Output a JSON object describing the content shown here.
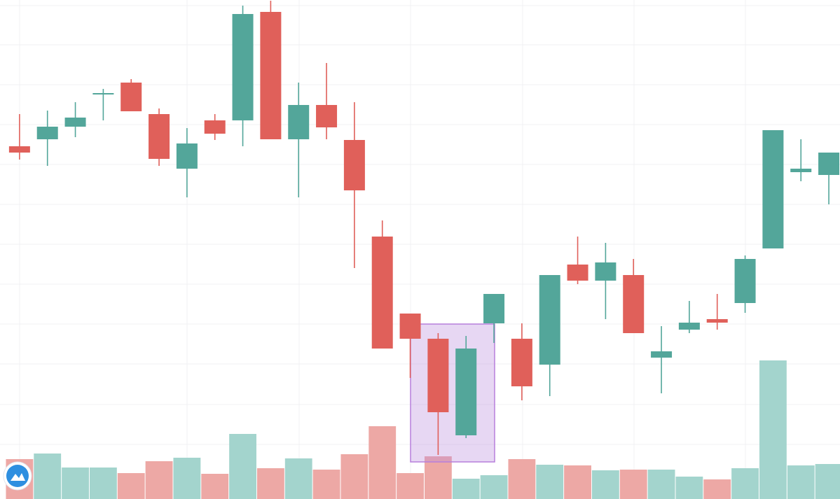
{
  "chart_data": {
    "type": "candlestick",
    "x": [
      1,
      2,
      3,
      4,
      5,
      6,
      7,
      8,
      9,
      10,
      11,
      12,
      13,
      14,
      15,
      16,
      17,
      18,
      19,
      20,
      21,
      22,
      23,
      24,
      25,
      26,
      27,
      28,
      29,
      30
    ],
    "open": [
      504,
      514,
      532,
      578,
      595,
      550,
      472,
      541,
      541,
      696,
      514,
      563,
      513,
      375,
      265,
      229,
      91,
      251,
      229,
      192,
      335,
      312,
      320,
      202,
      242,
      257,
      280,
      358,
      467,
      463
    ],
    "high": [
      550,
      555,
      567,
      586,
      600,
      558,
      530,
      550,
      705,
      712,
      595,
      623,
      567,
      398,
      265,
      237,
      233,
      293,
      251,
      320,
      375,
      366,
      343,
      247,
      283,
      293,
      348,
      527,
      514,
      495
    ],
    "low": [
      485,
      476,
      517,
      541,
      554,
      476,
      431,
      513,
      504,
      514,
      431,
      514,
      330,
      215,
      173,
      63,
      87,
      223,
      141,
      147,
      307,
      257,
      237,
      151,
      237,
      242,
      266,
      358,
      454,
      421
    ],
    "close": [
      495,
      532,
      545,
      580,
      554,
      486,
      508,
      522,
      693,
      514,
      563,
      531,
      441,
      215,
      229,
      124,
      215,
      293,
      161,
      320,
      312,
      338,
      237,
      211,
      252,
      252,
      343,
      527,
      472,
      495
    ],
    "volume": [
      57,
      65,
      45,
      45,
      37,
      54,
      59,
      36,
      93,
      44,
      58,
      42,
      64,
      104,
      37,
      61,
      29,
      34,
      57,
      49,
      48,
      41,
      42,
      42,
      32,
      28,
      44,
      198,
      48,
      50
    ],
    "up_color": "#53a69a",
    "down_color": "#e0605a",
    "volume_up_color": "#a3d4cd",
    "volume_down_color": "#eda8a5",
    "xlim": [
      0.3,
      30.4
    ],
    "ylim": [
      0,
      713
    ],
    "volume_ylim": [
      0,
      713
    ],
    "yticks": [
      705,
      649,
      592,
      535,
      478,
      421,
      364,
      307,
      250,
      193,
      135,
      78
    ],
    "grid": true
  }
}
